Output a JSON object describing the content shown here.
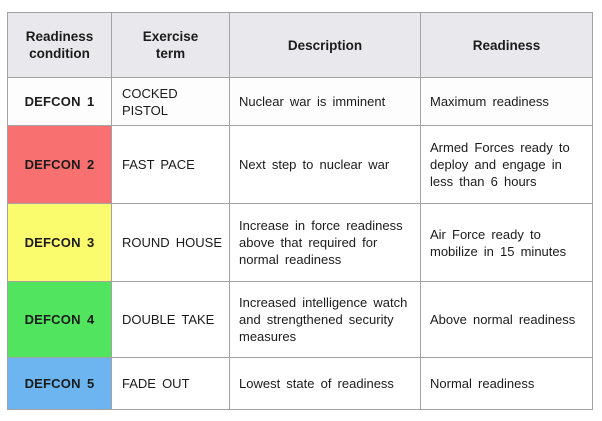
{
  "table": {
    "title_semantic": "DEFCON readiness conditions table",
    "headers": [
      "Readiness condition",
      "Exercise term",
      "Description",
      "Readiness"
    ],
    "rows": [
      {
        "condition": "DEFCON 1",
        "term": "COCKED PISTOL",
        "description": "Nuclear war is imminent",
        "readiness": "Maximum readiness",
        "condition_bg": "#fdfdfd"
      },
      {
        "condition": "DEFCON 2",
        "term": "FAST PACE",
        "description": "Next step to nuclear war",
        "readiness": "Armed Forces ready to deploy and engage in less than 6 hours",
        "condition_bg": "#f87170"
      },
      {
        "condition": "DEFCON 3",
        "term": "ROUND HOUSE",
        "description": "Increase in force readiness above that required for normal readiness",
        "readiness": "Air Force ready to mobilize in 15 minutes",
        "condition_bg": "#fbfb6e"
      },
      {
        "condition": "DEFCON 4",
        "term": "DOUBLE TAKE",
        "description": "Increased intelligence watch and strengthened security measures",
        "readiness": "Above normal readiness",
        "condition_bg": "#50e45f"
      },
      {
        "condition": "DEFCON 5",
        "term": "FADE OUT",
        "description": "Lowest state of readiness",
        "readiness": "Normal readiness",
        "condition_bg": "#6cb5f0"
      }
    ],
    "colors": {
      "header_bg": "#e9e9ed",
      "border": "#a3a3a3",
      "text": "#1b1b1b",
      "defcon1_bg": "#fdfdfd",
      "defcon2_bg": "#f87170",
      "defcon3_bg": "#fbfb6e",
      "defcon4_bg": "#50e45f",
      "defcon5_bg": "#6cb5f0"
    }
  }
}
